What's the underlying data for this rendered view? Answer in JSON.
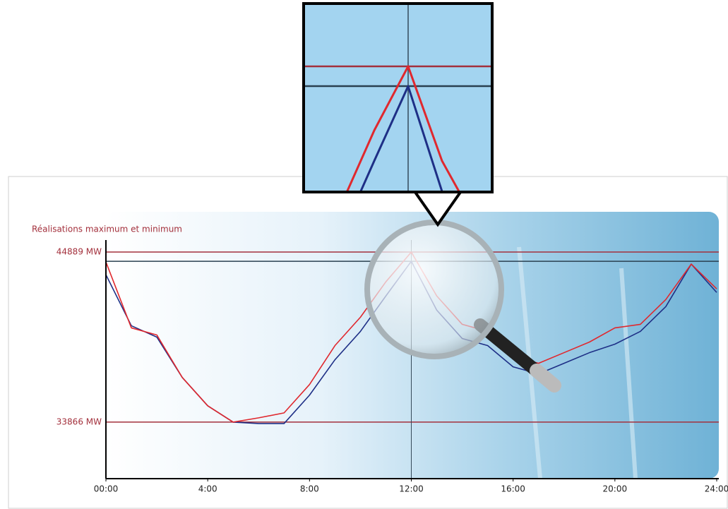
{
  "chart_data": {
    "type": "line",
    "title": "Réalisations maximum et minimum",
    "x": [
      0,
      1,
      2,
      3,
      4,
      5,
      6,
      7,
      8,
      9,
      10,
      11,
      12,
      13,
      14,
      15,
      16,
      17,
      18,
      19,
      20,
      21,
      22,
      23,
      24
    ],
    "series": [
      {
        "color": "#e0282e",
        "values": [
          44246,
          39974,
          39515,
          36759,
          34922,
          33866,
          34141,
          34463,
          36300,
          38826,
          40663,
          42960,
          44889,
          42041,
          40204,
          39745,
          38137,
          37678,
          38367,
          39056,
          39974,
          40204,
          41812,
          44108,
          42501
        ]
      },
      {
        "color": "#1e2f86",
        "values": [
          43419,
          40112,
          39377,
          36759,
          34922,
          33866,
          33774,
          33774,
          35611,
          37908,
          39745,
          42041,
          44292,
          41123,
          39285,
          38826,
          37448,
          36989,
          37678,
          38367,
          38918,
          39745,
          41352,
          44108,
          42271
        ]
      }
    ],
    "xlim": [
      0,
      24
    ],
    "xticks": [
      {
        "value": 0,
        "label": "00:00"
      },
      {
        "value": 4,
        "label": "4:00"
      },
      {
        "value": 8,
        "label": "8:00"
      },
      {
        "value": 12,
        "label": "12:00"
      },
      {
        "value": 16,
        "label": "16:00"
      },
      {
        "value": 20,
        "label": "20:00"
      },
      {
        "value": 24,
        "label": "24:00"
      }
    ],
    "ylim": [
      30200,
      47500
    ],
    "yticks": [
      {
        "value": 44889,
        "label": "44889 MW"
      },
      {
        "value": 33866,
        "label": "33866 MW"
      }
    ],
    "grid_color": "#a3303c",
    "reference_lines": [
      {
        "value": 44292,
        "color": "#2a4050"
      }
    ],
    "cursor_x": 12
  }
}
